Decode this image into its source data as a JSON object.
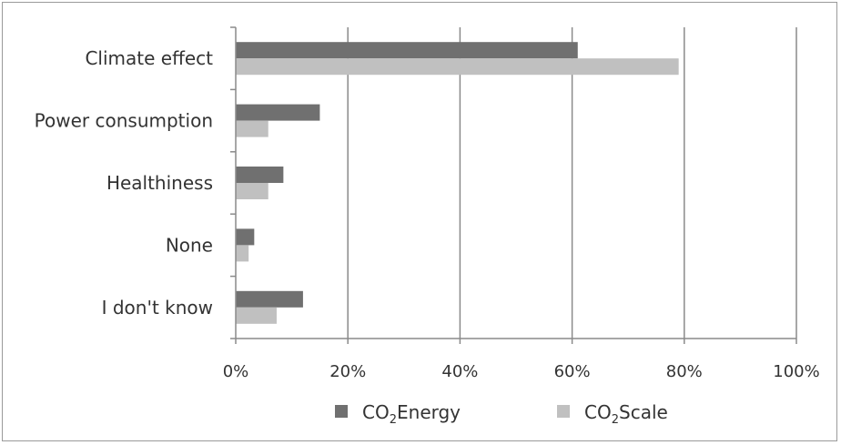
{
  "chart_data": {
    "type": "bar",
    "orientation": "horizontal",
    "categories": [
      "Climate effect",
      "Power consumption",
      "Healthiness",
      "None",
      "I don't know"
    ],
    "series": [
      {
        "name": "CO2Energy",
        "legend_main": "CO",
        "legend_sub": "2",
        "legend_rest": "Energy",
        "color": "#707070",
        "values": [
          61,
          15,
          8.5,
          3.3,
          12
        ]
      },
      {
        "name": "CO2Scale",
        "legend_main": "CO",
        "legend_sub": "2",
        "legend_rest": "Scale",
        "color": "#c0c0c0",
        "values": [
          79,
          5.8,
          5.8,
          2.3,
          7.3
        ]
      }
    ],
    "xlim": [
      0,
      100
    ],
    "x_ticks": [
      "0%",
      "20%",
      "40%",
      "60%",
      "80%",
      "100%"
    ],
    "x_tick_values": [
      0,
      20,
      40,
      60,
      80,
      100
    ],
    "grid": "vertical",
    "legend_position": "bottom",
    "title": "",
    "xlabel": "",
    "ylabel": ""
  }
}
